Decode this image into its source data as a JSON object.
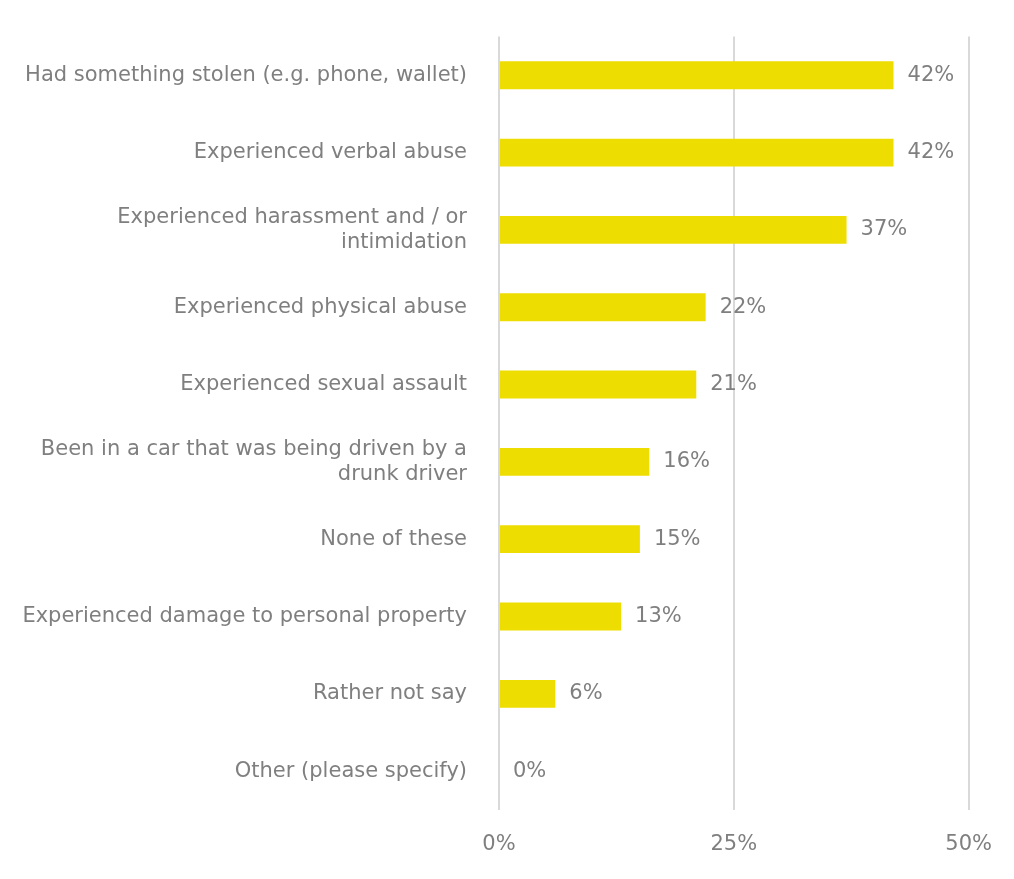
{
  "chart_data": {
    "type": "bar",
    "orientation": "horizontal",
    "categories": [
      "Had something stolen (e.g. phone, wallet)",
      "Experienced verbal abuse",
      "Experienced harassment and / or intimidation",
      "Experienced physical abuse",
      "Experienced sexual assault",
      "Been in a car that was being driven by a drunk driver",
      "None of these",
      "Experienced damage to personal property",
      "Rather not say",
      "Other (please specify)"
    ],
    "values": [
      42,
      42,
      37,
      22,
      21,
      16,
      15,
      13,
      6,
      0
    ],
    "value_labels": [
      "42%",
      "42%",
      "37%",
      "22%",
      "21%",
      "16%",
      "15%",
      "13%",
      "6%",
      "0%"
    ],
    "color": "#eedd00",
    "xlim": [
      0,
      50
    ],
    "xticks": [
      {
        "value": 0,
        "label": "0%"
      },
      {
        "value": 25,
        "label": "25%"
      },
      {
        "value": 50,
        "label": "50%"
      }
    ],
    "grid": "x",
    "legend": false
  }
}
